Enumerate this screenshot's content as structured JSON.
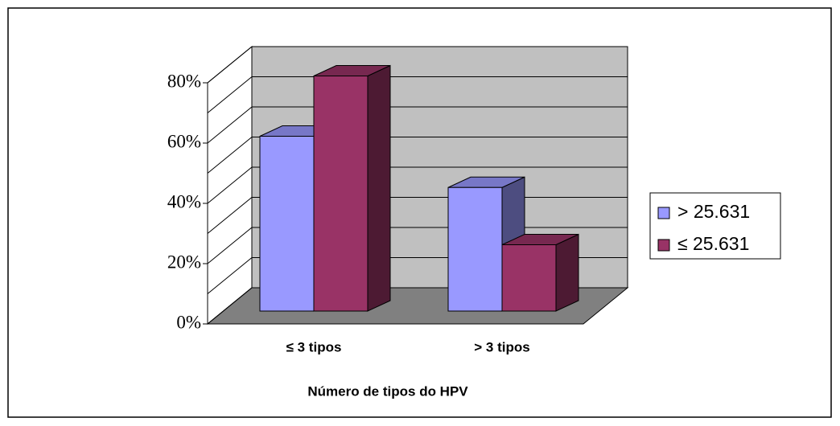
{
  "chart_data": {
    "type": "bar3d",
    "x_label": "Número de tipos do HPV",
    "categories": [
      "≤ 3 tipos",
      "> 3 tipos"
    ],
    "series": [
      {
        "name": "> 25.631",
        "color": "#9999ff",
        "values": [
          58,
          41
        ]
      },
      {
        "name": "≤ 25.631",
        "color": "#993366",
        "values": [
          78,
          22
        ]
      }
    ],
    "ylim": [
      0,
      80
    ],
    "yticks": [
      {
        "value": 0,
        "label": "0%"
      },
      {
        "value": 20,
        "label": "20%"
      },
      {
        "value": 40,
        "label": "40%"
      },
      {
        "value": 60,
        "label": "60%"
      },
      {
        "value": 80,
        "label": "80%"
      }
    ],
    "ygrid": [
      0,
      10,
      20,
      30,
      40,
      50,
      60,
      70,
      80
    ],
    "grid": true,
    "legend": "right"
  }
}
